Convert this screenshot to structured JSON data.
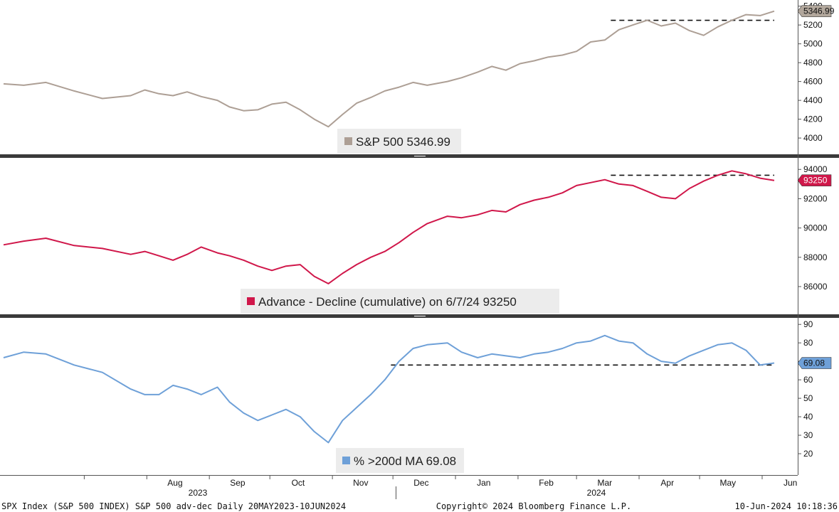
{
  "colors": {
    "spx": "#ad9f95",
    "adv": "#d0174a",
    "pct": "#6ea0d8",
    "divider": "#3a3a3a",
    "legend_bg": "#ececec"
  },
  "x_labels": [
    "Aug",
    "Sep",
    "Oct",
    "Nov",
    "Dec",
    "Jan",
    "Feb",
    "Mar",
    "Apr",
    "May",
    "Jun"
  ],
  "year_labels": [
    "2023",
    "2024"
  ],
  "footer": {
    "left": "SPX Index (S&P 500 INDEX) S&P 500 adv-dec  Daily 20MAY2023-10JUN2024",
    "center": "Copyright© 2024 Bloomberg Finance L.P.",
    "right": "10-Jun-2024 10:18:36"
  },
  "chart_data": [
    {
      "type": "line",
      "panel": "top",
      "legend": "S&P 500 5346.99",
      "last_value_label": "5346.99",
      "last_value": 5346.99,
      "ylim": [
        3880,
        5420
      ],
      "yticks": [
        4000,
        4200,
        4400,
        4600,
        4800,
        5000,
        5200,
        5400
      ],
      "reference_line": {
        "value": 5250,
        "from": "2024-03-18",
        "to": "2024-06-07",
        "style": "dashed"
      },
      "series": [
        {
          "points": [
            [
              "2023-05-22",
              4575
            ],
            [
              "2023-06-01",
              4560
            ],
            [
              "2023-06-12",
              4590
            ],
            [
              "2023-06-26",
              4500
            ],
            [
              "2023-07-10",
              4420
            ],
            [
              "2023-07-24",
              4450
            ],
            [
              "2023-07-31",
              4510
            ],
            [
              "2023-08-07",
              4470
            ],
            [
              "2023-08-14",
              4450
            ],
            [
              "2023-08-21",
              4490
            ],
            [
              "2023-08-28",
              4440
            ],
            [
              "2023-09-05",
              4400
            ],
            [
              "2023-09-11",
              4330
            ],
            [
              "2023-09-18",
              4290
            ],
            [
              "2023-09-25",
              4300
            ],
            [
              "2023-10-02",
              4360
            ],
            [
              "2023-10-09",
              4380
            ],
            [
              "2023-10-16",
              4300
            ],
            [
              "2023-10-23",
              4200
            ],
            [
              "2023-10-30",
              4120
            ],
            [
              "2023-11-06",
              4250
            ],
            [
              "2023-11-13",
              4370
            ],
            [
              "2023-11-20",
              4430
            ],
            [
              "2023-11-27",
              4500
            ],
            [
              "2023-12-04",
              4540
            ],
            [
              "2023-12-11",
              4590
            ],
            [
              "2023-12-18",
              4560
            ],
            [
              "2023-12-28",
              4600
            ],
            [
              "2024-01-04",
              4640
            ],
            [
              "2024-01-12",
              4700
            ],
            [
              "2024-01-19",
              4760
            ],
            [
              "2024-01-26",
              4720
            ],
            [
              "2024-02-02",
              4790
            ],
            [
              "2024-02-09",
              4820
            ],
            [
              "2024-02-16",
              4860
            ],
            [
              "2024-02-23",
              4880
            ],
            [
              "2024-03-01",
              4920
            ],
            [
              "2024-03-08",
              5020
            ],
            [
              "2024-03-15",
              5040
            ],
            [
              "2024-03-22",
              5150
            ],
            [
              "2024-03-29",
              5200
            ],
            [
              "2024-04-05",
              5250
            ],
            [
              "2024-04-12",
              5190
            ],
            [
              "2024-04-19",
              5220
            ],
            [
              "2024-04-26",
              5140
            ],
            [
              "2024-05-03",
              5090
            ],
            [
              "2024-05-10",
              5180
            ],
            [
              "2024-05-17",
              5250
            ],
            [
              "2024-05-24",
              5310
            ],
            [
              "2024-05-31",
              5300
            ],
            [
              "2024-06-07",
              5346.99
            ]
          ]
        }
      ]
    },
    {
      "type": "line",
      "panel": "middle",
      "legend": "Advance - Decline (cumulative) on 6/7/24 93250",
      "last_value_label": "93250",
      "last_value": 93250,
      "ylim": [
        84300,
        94400
      ],
      "yticks": [
        86000,
        88000,
        90000,
        92000,
        94000
      ],
      "reference_line": {
        "value": 93600,
        "from": "2024-03-18",
        "to": "2024-06-07",
        "style": "dashed"
      },
      "series": [
        {
          "points": [
            [
              "2023-05-22",
              88850
            ],
            [
              "2023-06-01",
              89100
            ],
            [
              "2023-06-12",
              89300
            ],
            [
              "2023-06-26",
              88800
            ],
            [
              "2023-07-10",
              88600
            ],
            [
              "2023-07-24",
              88200
            ],
            [
              "2023-07-31",
              88400
            ],
            [
              "2023-08-07",
              88100
            ],
            [
              "2023-08-14",
              87800
            ],
            [
              "2023-08-21",
              88200
            ],
            [
              "2023-08-28",
              88700
            ],
            [
              "2023-09-05",
              88300
            ],
            [
              "2023-09-11",
              88100
            ],
            [
              "2023-09-18",
              87800
            ],
            [
              "2023-09-25",
              87400
            ],
            [
              "2023-10-02",
              87100
            ],
            [
              "2023-10-09",
              87400
            ],
            [
              "2023-10-16",
              87500
            ],
            [
              "2023-10-23",
              86700
            ],
            [
              "2023-10-30",
              86200
            ],
            [
              "2023-11-06",
              86900
            ],
            [
              "2023-11-13",
              87500
            ],
            [
              "2023-11-20",
              88000
            ],
            [
              "2023-11-27",
              88400
            ],
            [
              "2023-12-04",
              89000
            ],
            [
              "2023-12-11",
              89700
            ],
            [
              "2023-12-18",
              90300
            ],
            [
              "2023-12-28",
              90800
            ],
            [
              "2024-01-04",
              90700
            ],
            [
              "2024-01-12",
              90900
            ],
            [
              "2024-01-19",
              91200
            ],
            [
              "2024-01-26",
              91100
            ],
            [
              "2024-02-02",
              91600
            ],
            [
              "2024-02-09",
              91900
            ],
            [
              "2024-02-16",
              92100
            ],
            [
              "2024-02-23",
              92400
            ],
            [
              "2024-03-01",
              92900
            ],
            [
              "2024-03-08",
              93100
            ],
            [
              "2024-03-15",
              93300
            ],
            [
              "2024-03-22",
              93000
            ],
            [
              "2024-03-29",
              92900
            ],
            [
              "2024-04-05",
              92500
            ],
            [
              "2024-04-12",
              92100
            ],
            [
              "2024-04-19",
              92000
            ],
            [
              "2024-04-26",
              92700
            ],
            [
              "2024-05-03",
              93200
            ],
            [
              "2024-05-10",
              93600
            ],
            [
              "2024-05-17",
              93900
            ],
            [
              "2024-05-24",
              93700
            ],
            [
              "2024-05-31",
              93400
            ],
            [
              "2024-06-07",
              93250
            ]
          ]
        }
      ]
    },
    {
      "type": "line",
      "panel": "bottom",
      "legend": "% >200d MA 69.08",
      "last_value_label": "69.08",
      "last_value": 69.08,
      "ylim": [
        10,
        92
      ],
      "yticks": [
        20,
        30,
        40,
        50,
        60,
        70,
        80,
        90
      ],
      "reference_line": {
        "value": 68,
        "from": "2023-11-30",
        "to": "2024-06-07",
        "style": "dashed"
      },
      "series": [
        {
          "points": [
            [
              "2023-05-22",
              72
            ],
            [
              "2023-06-01",
              75
            ],
            [
              "2023-06-12",
              74
            ],
            [
              "2023-06-26",
              68
            ],
            [
              "2023-07-10",
              64
            ],
            [
              "2023-07-24",
              55
            ],
            [
              "2023-07-31",
              52
            ],
            [
              "2023-08-07",
              52
            ],
            [
              "2023-08-14",
              57
            ],
            [
              "2023-08-21",
              55
            ],
            [
              "2023-08-28",
              52
            ],
            [
              "2023-09-05",
              56
            ],
            [
              "2023-09-11",
              48
            ],
            [
              "2023-09-18",
              42
            ],
            [
              "2023-09-25",
              38
            ],
            [
              "2023-10-02",
              41
            ],
            [
              "2023-10-09",
              44
            ],
            [
              "2023-10-16",
              40
            ],
            [
              "2023-10-23",
              32
            ],
            [
              "2023-10-30",
              26
            ],
            [
              "2023-11-06",
              38
            ],
            [
              "2023-11-13",
              45
            ],
            [
              "2023-11-20",
              52
            ],
            [
              "2023-11-27",
              60
            ],
            [
              "2023-12-04",
              70
            ],
            [
              "2023-12-11",
              77
            ],
            [
              "2023-12-18",
              79
            ],
            [
              "2023-12-28",
              80
            ],
            [
              "2024-01-04",
              75
            ],
            [
              "2024-01-12",
              72
            ],
            [
              "2024-01-19",
              74
            ],
            [
              "2024-01-26",
              73
            ],
            [
              "2024-02-02",
              72
            ],
            [
              "2024-02-09",
              74
            ],
            [
              "2024-02-16",
              75
            ],
            [
              "2024-02-23",
              77
            ],
            [
              "2024-03-01",
              80
            ],
            [
              "2024-03-08",
              81
            ],
            [
              "2024-03-15",
              84
            ],
            [
              "2024-03-22",
              81
            ],
            [
              "2024-03-29",
              80
            ],
            [
              "2024-04-05",
              74
            ],
            [
              "2024-04-12",
              70
            ],
            [
              "2024-04-19",
              69
            ],
            [
              "2024-04-26",
              73
            ],
            [
              "2024-05-03",
              76
            ],
            [
              "2024-05-10",
              79
            ],
            [
              "2024-05-17",
              80
            ],
            [
              "2024-05-24",
              76
            ],
            [
              "2024-05-31",
              68
            ],
            [
              "2024-06-07",
              69.08
            ]
          ]
        }
      ]
    }
  ]
}
